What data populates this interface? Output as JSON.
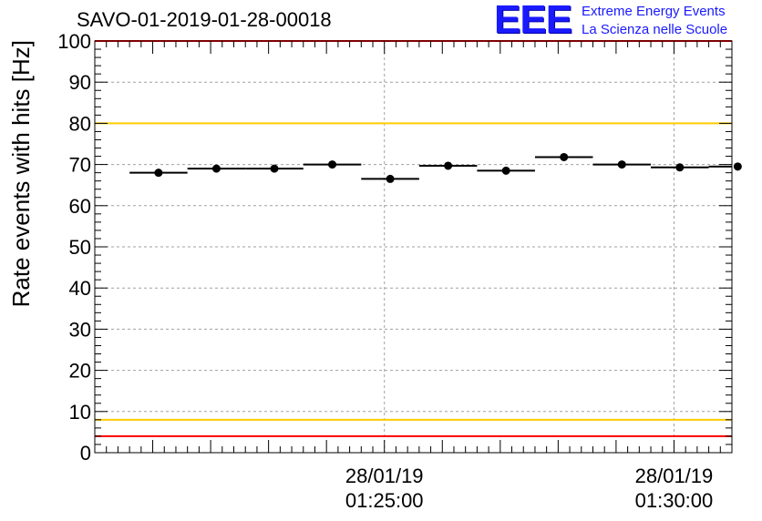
{
  "title": "SAVO-01-2019-01-28-00018",
  "logo": {
    "mark": "EEE",
    "line1": "Extreme Energy Events",
    "line2": "La Scienza nelle Scuole"
  },
  "colors": {
    "red_limit": "#ff0000",
    "yellow_limit": "#ffcc00",
    "data_marker": "#000000",
    "grid": "#a0a0a0",
    "logo": "#1a1aff"
  },
  "chart_data": {
    "type": "scatter",
    "title": "SAVO-01-2019-01-28-00018",
    "ylabel": "Rate events with hits [Hz]",
    "ylim": [
      0,
      100
    ],
    "y_ticks": [
      "0",
      "10",
      "20",
      "30",
      "40",
      "50",
      "60",
      "70",
      "80",
      "90",
      "100"
    ],
    "x_unit": "minutes",
    "xlim": [
      -5.0,
      6.0
    ],
    "x_ticks": [
      {
        "x": 0,
        "date": "28/01/19",
        "time": "01:25:00"
      },
      {
        "x": 5,
        "date": "28/01/19",
        "time": "01:30:00"
      }
    ],
    "grid": true,
    "bin_width": 1.0,
    "series": [
      {
        "x": [
          -3.9,
          -2.9,
          -1.9,
          -0.9,
          0.1,
          1.1,
          2.1,
          3.1,
          4.1,
          5.1,
          6.1
        ],
        "y": [
          68.0,
          69.0,
          69.0,
          70.0,
          66.5,
          69.7,
          68.5,
          71.8,
          70.0,
          69.3,
          69.5
        ]
      }
    ],
    "reference_lines": [
      {
        "y": 100,
        "color": "red"
      },
      {
        "y": 80,
        "color": "yellow"
      },
      {
        "y": 8,
        "color": "yellow"
      },
      {
        "y": 4,
        "color": "red"
      }
    ]
  }
}
